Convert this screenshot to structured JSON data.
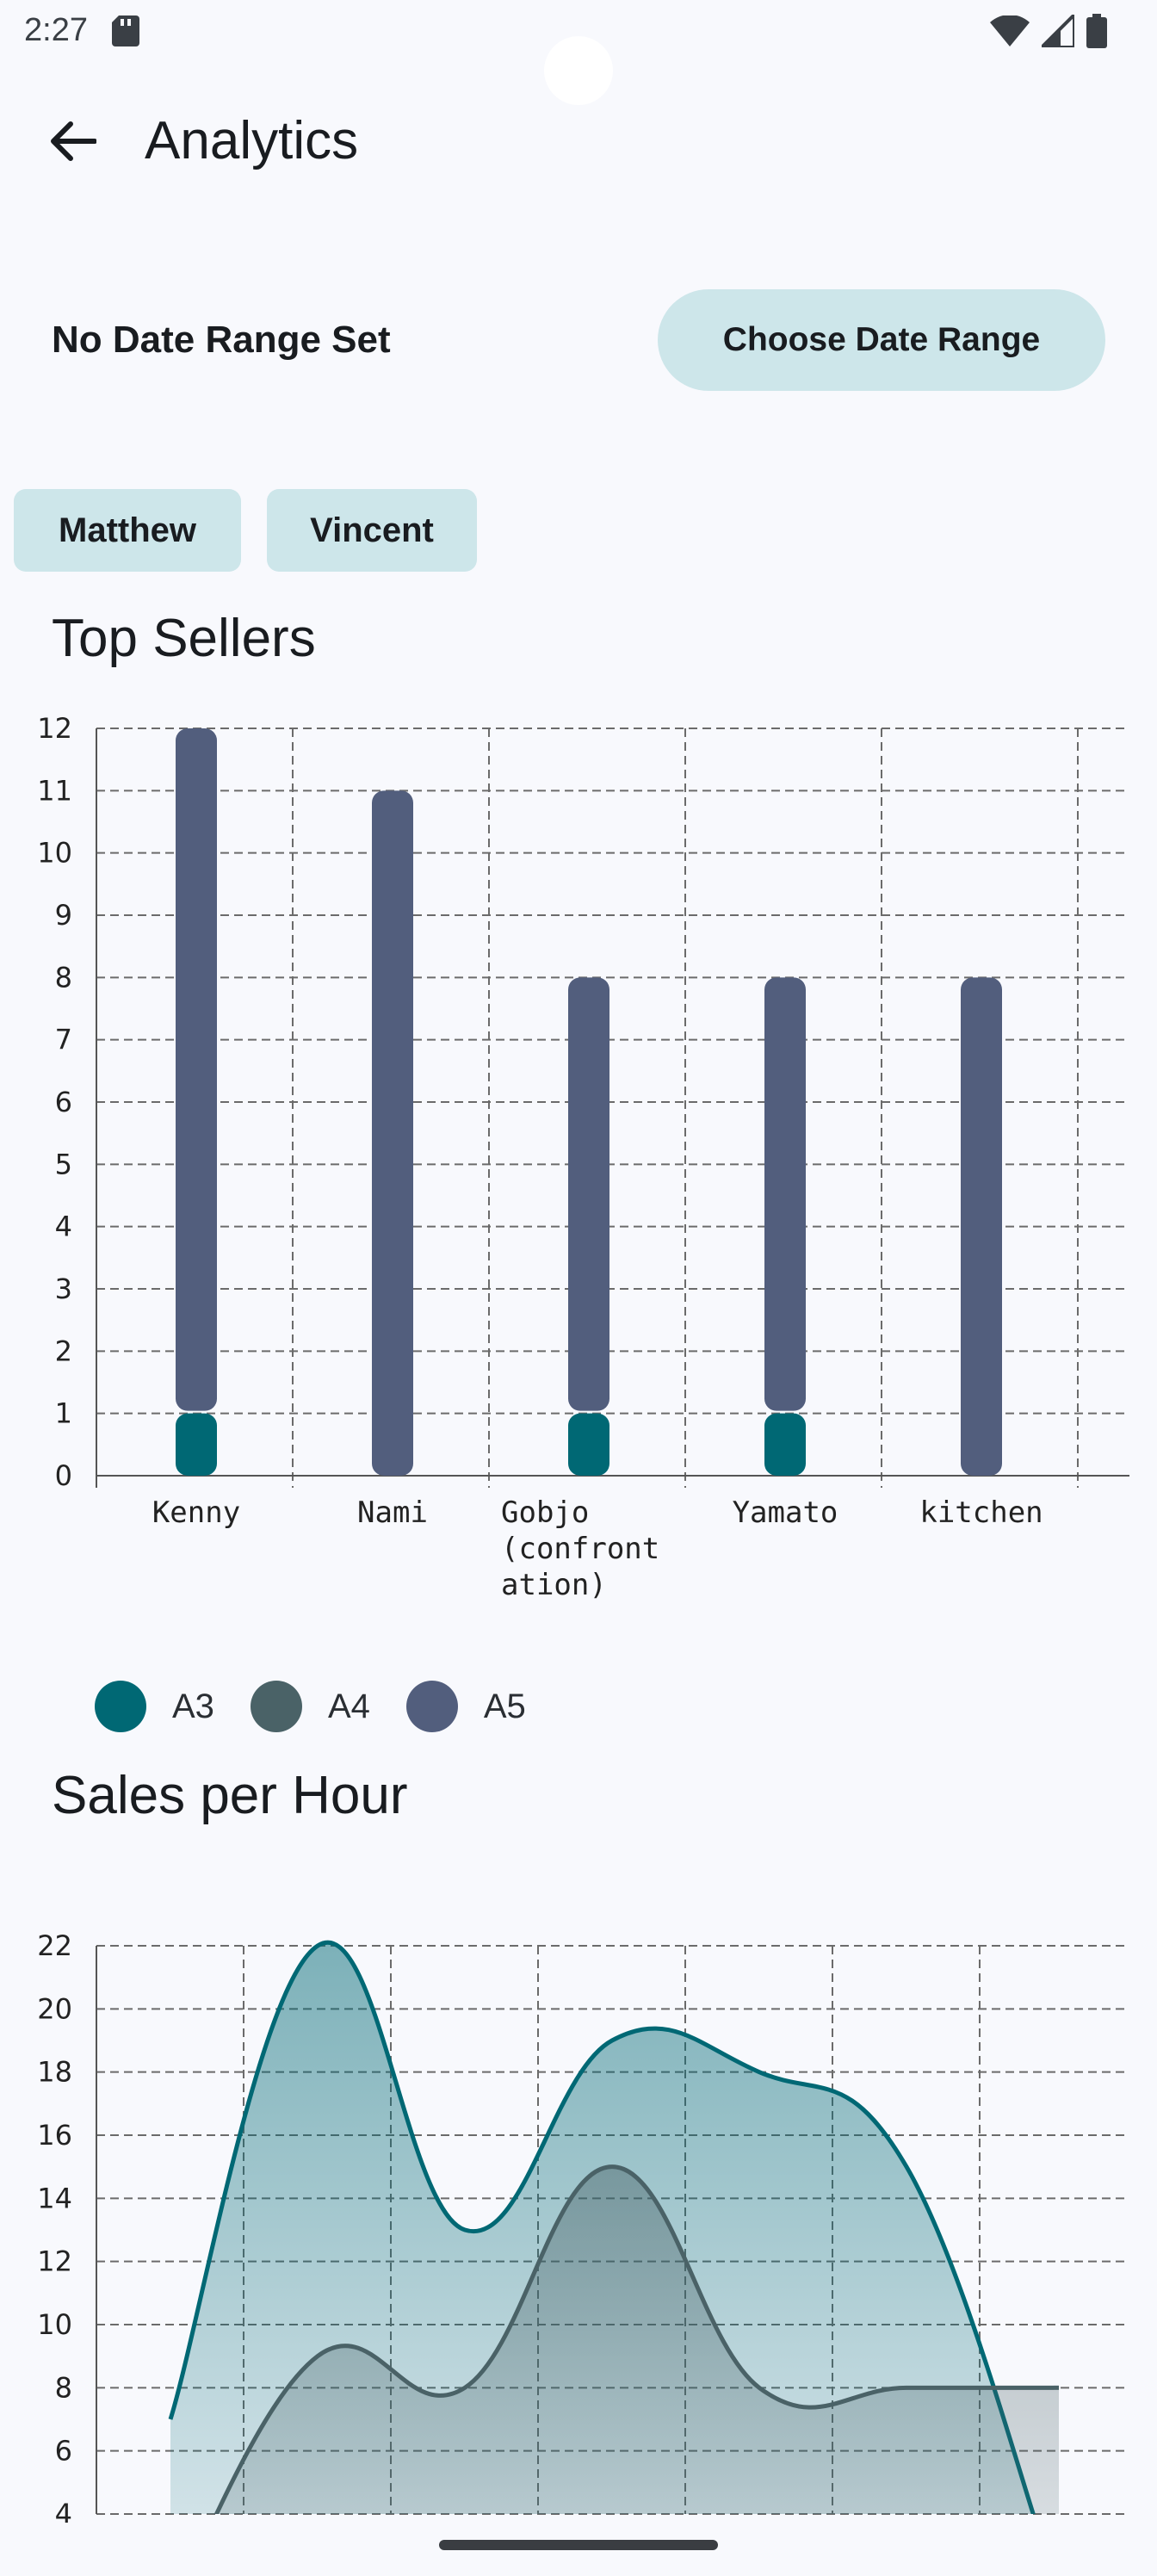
{
  "status_bar": {
    "time": "2:27"
  },
  "app_bar": {
    "title": "Analytics"
  },
  "date_range": {
    "label": "No Date Range Set",
    "button_label": "Choose Date Range"
  },
  "chips": [
    "Matthew",
    "Vincent"
  ],
  "top_sellers": {
    "title": "Top Sellers"
  },
  "sales_per_hour": {
    "title": "Sales per Hour"
  },
  "colors": {
    "A3": "#006874",
    "A4": "#4a6267",
    "A5": "#525e7d",
    "chip_bg": "#cde6ea"
  },
  "chart_data": [
    {
      "type": "bar",
      "stacked": true,
      "categories": [
        "Kenny",
        "Nami",
        "Gobjo (confrontation)",
        "Yamato",
        "kitchen"
      ],
      "category_label_lines": [
        [
          "Kenny"
        ],
        [
          "Nami"
        ],
        [
          "Gobjo",
          "(confront",
          "ation)"
        ],
        [
          "Yamato"
        ],
        [
          "kitchen"
        ]
      ],
      "series": [
        {
          "name": "A3",
          "values": [
            1,
            0,
            1,
            1,
            0
          ]
        },
        {
          "name": "A4",
          "values": [
            0,
            0,
            0,
            0,
            0
          ]
        },
        {
          "name": "A5",
          "values": [
            11,
            11,
            7,
            7,
            8
          ]
        }
      ],
      "yticks": [
        "0",
        "1",
        "2",
        "3",
        "4",
        "5",
        "6",
        "7",
        "8",
        "9",
        "10",
        "11",
        "12"
      ],
      "ylim": [
        0,
        12
      ],
      "grid": true,
      "legend": "bottom-left"
    },
    {
      "type": "area",
      "x": [
        1,
        2,
        3,
        4,
        5,
        6,
        7
      ],
      "series": [
        {
          "name": "A3",
          "values": [
            7,
            22,
            13,
            19,
            18,
            15,
            2
          ]
        },
        {
          "name": "A4",
          "values": [
            1,
            9,
            8,
            15,
            8,
            8,
            8
          ]
        }
      ],
      "yticks": [
        "4",
        "6",
        "8",
        "10",
        "12",
        "14",
        "16",
        "18",
        "20",
        "22"
      ],
      "ylim": [
        4,
        22
      ],
      "grid": true
    }
  ]
}
